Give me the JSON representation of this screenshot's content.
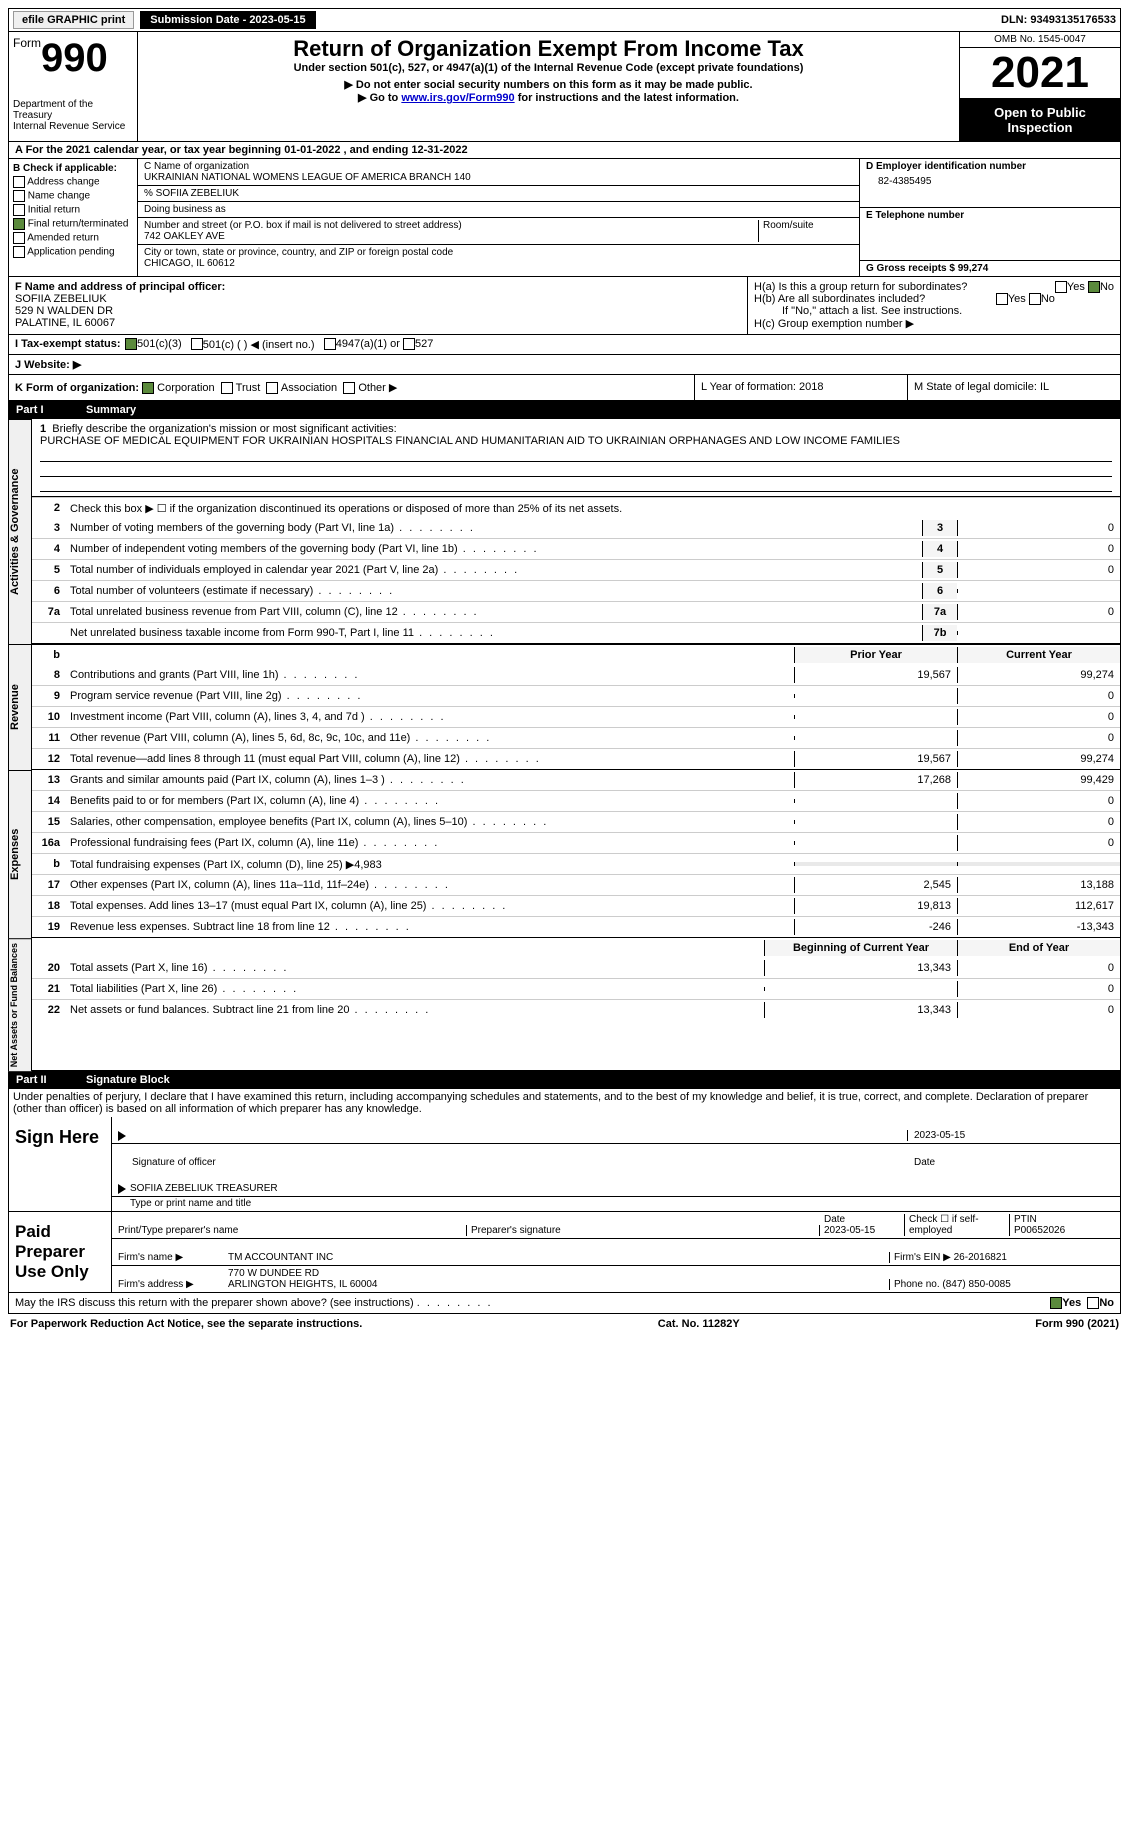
{
  "topbar": {
    "efile": "efile GRAPHIC print",
    "submission_label": "Submission Date - 2023-05-15",
    "dln_label": "DLN: 93493135176533"
  },
  "header": {
    "form_prefix": "Form",
    "form_no": "990",
    "dept": "Department of the Treasury",
    "irs": "Internal Revenue Service",
    "title": "Return of Organization Exempt From Income Tax",
    "subtitle": "Under section 501(c), 527, or 4947(a)(1) of the Internal Revenue Code (except private foundations)",
    "warn1": "▶ Do not enter social security numbers on this form as it may be made public.",
    "warn2_pre": "▶ Go to ",
    "warn2_link": "www.irs.gov/Form990",
    "warn2_post": " for instructions and the latest information.",
    "omb": "OMB No. 1545-0047",
    "year": "2021",
    "open": "Open to Public Inspection"
  },
  "rowA": "A For the 2021 calendar year, or tax year beginning 01-01-2022   , and ending 12-31-2022",
  "boxB": {
    "title": "B Check if applicable:",
    "opts": [
      "Address change",
      "Name change",
      "Initial return",
      "Final return/terminated",
      "Amended return",
      "Application pending"
    ],
    "checked_idx": 3
  },
  "boxC": {
    "label_name": "C Name of organization",
    "org": "UKRAINIAN NATIONAL WOMENS LEAGUE OF AMERICA BRANCH 140",
    "care": "% SOFIIA ZEBELIUK",
    "dba_label": "Doing business as",
    "addr_label": "Number and street (or P.O. box if mail is not delivered to street address)",
    "room_label": "Room/suite",
    "addr": "742 OAKLEY AVE",
    "city_label": "City or town, state or province, country, and ZIP or foreign postal code",
    "city": "CHICAGO, IL  60612"
  },
  "boxD": {
    "label": "D Employer identification number",
    "val": "82-4385495"
  },
  "boxE": {
    "label": "E Telephone number"
  },
  "boxG": {
    "label": "G Gross receipts $ 99,274"
  },
  "boxF": {
    "label": "F  Name and address of principal officer:",
    "name": "SOFIIA ZEBELIUK",
    "addr1": "529 N WALDEN DR",
    "addr2": "PALATINE, IL  60067"
  },
  "boxH": {
    "a": "H(a)  Is this a group return for subordinates?",
    "b": "H(b)  Are all subordinates included?",
    "b_note": "If \"No,\" attach a list. See instructions.",
    "c": "H(c)  Group exemption number ▶",
    "yes": "Yes",
    "no": "No"
  },
  "rowI": {
    "label": "I   Tax-exempt status:",
    "o1": "501(c)(3)",
    "o2": "501(c) (  ) ◀ (insert no.)",
    "o3": "4947(a)(1) or",
    "o4": "527"
  },
  "rowJ": "J   Website: ▶",
  "rowK": {
    "label": "K Form of organization:",
    "o1": "Corporation",
    "o2": "Trust",
    "o3": "Association",
    "o4": "Other ▶"
  },
  "rowL": "L Year of formation: 2018",
  "rowM": "M State of legal domicile: IL",
  "part1": {
    "num": "Part I",
    "title": "Summary"
  },
  "summary": {
    "l1_label": "Briefly describe the organization's mission or most significant activities:",
    "l1_text": "PURCHASE OF MEDICAL EQUIPMENT FOR UKRAINIAN HOSPITALS FINANCIAL AND HUMANITARIAN AID TO UKRAINIAN ORPHANAGES AND LOW INCOME FAMILIES",
    "l2": "Check this box ▶ ☐ if the organization discontinued its operations or disposed of more than 25% of its net assets.",
    "lines_single": [
      {
        "n": "3",
        "t": "Number of voting members of the governing body (Part VI, line 1a)",
        "box": "3",
        "v": "0"
      },
      {
        "n": "4",
        "t": "Number of independent voting members of the governing body (Part VI, line 1b)",
        "box": "4",
        "v": "0"
      },
      {
        "n": "5",
        "t": "Total number of individuals employed in calendar year 2021 (Part V, line 2a)",
        "box": "5",
        "v": "0"
      },
      {
        "n": "6",
        "t": "Total number of volunteers (estimate if necessary)",
        "box": "6",
        "v": ""
      },
      {
        "n": "7a",
        "t": "Total unrelated business revenue from Part VIII, column (C), line 12",
        "box": "7a",
        "v": "0"
      },
      {
        "n": "",
        "t": "Net unrelated business taxable income from Form 990-T, Part I, line 11",
        "box": "7b",
        "v": ""
      }
    ],
    "col_prior": "Prior Year",
    "col_current": "Current Year",
    "revenue": [
      {
        "n": "8",
        "t": "Contributions and grants (Part VIII, line 1h)",
        "p": "19,567",
        "c": "99,274"
      },
      {
        "n": "9",
        "t": "Program service revenue (Part VIII, line 2g)",
        "p": "",
        "c": "0"
      },
      {
        "n": "10",
        "t": "Investment income (Part VIII, column (A), lines 3, 4, and 7d )",
        "p": "",
        "c": "0"
      },
      {
        "n": "11",
        "t": "Other revenue (Part VIII, column (A), lines 5, 6d, 8c, 9c, 10c, and 11e)",
        "p": "",
        "c": "0"
      },
      {
        "n": "12",
        "t": "Total revenue—add lines 8 through 11 (must equal Part VIII, column (A), line 12)",
        "p": "19,567",
        "c": "99,274"
      }
    ],
    "expenses": [
      {
        "n": "13",
        "t": "Grants and similar amounts paid (Part IX, column (A), lines 1–3 )",
        "p": "17,268",
        "c": "99,429"
      },
      {
        "n": "14",
        "t": "Benefits paid to or for members (Part IX, column (A), line 4)",
        "p": "",
        "c": "0"
      },
      {
        "n": "15",
        "t": "Salaries, other compensation, employee benefits (Part IX, column (A), lines 5–10)",
        "p": "",
        "c": "0"
      },
      {
        "n": "16a",
        "t": "Professional fundraising fees (Part IX, column (A), line 11e)",
        "p": "",
        "c": "0"
      },
      {
        "n": "b",
        "t": "Total fundraising expenses (Part IX, column (D), line 25) ▶4,983",
        "p": "shade",
        "c": "shade"
      },
      {
        "n": "17",
        "t": "Other expenses (Part IX, column (A), lines 11a–11d, 11f–24e)",
        "p": "2,545",
        "c": "13,188"
      },
      {
        "n": "18",
        "t": "Total expenses. Add lines 13–17 (must equal Part IX, column (A), line 25)",
        "p": "19,813",
        "c": "112,617"
      },
      {
        "n": "19",
        "t": "Revenue less expenses. Subtract line 18 from line 12",
        "p": "-246",
        "c": "-13,343"
      }
    ],
    "col_begin": "Beginning of Current Year",
    "col_end": "End of Year",
    "netassets": [
      {
        "n": "20",
        "t": "Total assets (Part X, line 16)",
        "p": "13,343",
        "c": "0"
      },
      {
        "n": "21",
        "t": "Total liabilities (Part X, line 26)",
        "p": "",
        "c": "0"
      },
      {
        "n": "22",
        "t": "Net assets or fund balances. Subtract line 21 from line 20",
        "p": "13,343",
        "c": "0"
      }
    ],
    "vlabels": {
      "ag": "Activities & Governance",
      "rev": "Revenue",
      "exp": "Expenses",
      "na": "Net Assets or Fund Balances"
    }
  },
  "part2": {
    "num": "Part II",
    "title": "Signature Block"
  },
  "sig_decl": "Under penalties of perjury, I declare that I have examined this return, including accompanying schedules and statements, and to the best of my knowledge and belief, it is true, correct, and complete. Declaration of preparer (other than officer) is based on all information of which preparer has any knowledge.",
  "sign": {
    "here": "Sign Here",
    "sig_officer": "Signature of officer",
    "date": "2023-05-15",
    "date_label": "Date",
    "name": "SOFIIA ZEBELIUK  TREASURER",
    "name_label": "Type or print name and title"
  },
  "paid": {
    "label": "Paid Preparer Use Only",
    "h1": "Print/Type preparer's name",
    "h2": "Preparer's signature",
    "h3": "Date",
    "h3v": "2023-05-15",
    "h4": "Check ☐ if self-employed",
    "h5": "PTIN",
    "h5v": "P00652026",
    "firm_label": "Firm's name    ▶",
    "firm": "TM ACCOUNTANT INC",
    "ein_label": "Firm's EIN ▶",
    "ein": "26-2016821",
    "addr_label": "Firm's address ▶",
    "addr1": "770 W DUNDEE RD",
    "addr2": "ARLINGTON HEIGHTS, IL  60004",
    "phone_label": "Phone no.",
    "phone": "(847) 850-0085"
  },
  "discuss": "May the IRS discuss this return with the preparer shown above? (see instructions)",
  "footer": {
    "l": "For Paperwork Reduction Act Notice, see the separate instructions.",
    "m": "Cat. No. 11282Y",
    "r": "Form 990 (2021)"
  }
}
